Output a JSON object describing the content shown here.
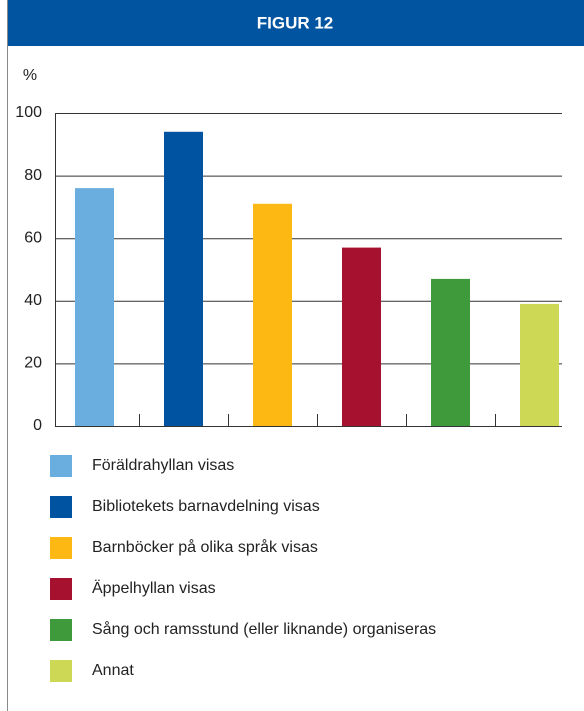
{
  "chart_data": {
    "type": "bar",
    "title": "FIGUR 12",
    "y_label": "%",
    "categories": [
      "Föräldrahyllan visas",
      "Bibliotekets barnavdelning visas",
      "Barnböcker på olika språk visas",
      "Äppelhyllan visas",
      "Sång och ramsstund (eller liknande) organiseras",
      "Annat"
    ],
    "values": [
      76,
      94,
      71,
      57,
      47,
      39
    ],
    "colors": [
      "#6aaddf",
      "#0053a0",
      "#fdb813",
      "#a6112f",
      "#3e9a3a",
      "#cdd855"
    ],
    "ylim": [
      0,
      100
    ],
    "yticks": [
      0,
      20,
      40,
      60,
      80,
      100
    ],
    "grid": true,
    "legend": "bottom"
  }
}
